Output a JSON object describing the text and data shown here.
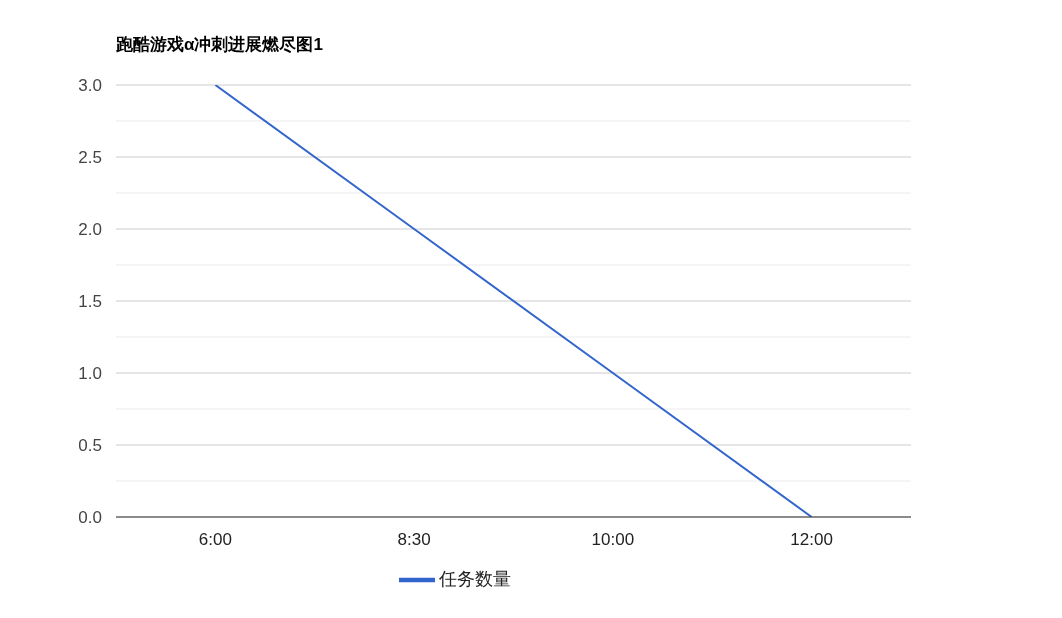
{
  "chart_data": {
    "type": "line",
    "title": "跑酷游戏α冲刺进展燃尽图1",
    "categories": [
      "6:00",
      "8:30",
      "10:00",
      "12:00"
    ],
    "series": [
      {
        "name": "任务数量",
        "color": "#3366cc",
        "values": [
          3,
          2,
          1,
          0
        ]
      }
    ],
    "ylim": [
      0,
      3
    ],
    "yticks": [
      {
        "value": 0,
        "label": "0.0"
      },
      {
        "value": 0.25,
        "label": null
      },
      {
        "value": 0.5,
        "label": "0.5"
      },
      {
        "value": 0.75,
        "label": null
      },
      {
        "value": 1,
        "label": "1.0"
      },
      {
        "value": 1.25,
        "label": null
      },
      {
        "value": 1.5,
        "label": "1.5"
      },
      {
        "value": 1.75,
        "label": null
      },
      {
        "value": 2,
        "label": "2.0"
      },
      {
        "value": 2.25,
        "label": null
      },
      {
        "value": 2.5,
        "label": "2.5"
      },
      {
        "value": 2.75,
        "label": null
      },
      {
        "value": 3,
        "label": "3.0"
      }
    ],
    "grid": true,
    "legend": "bottom"
  }
}
